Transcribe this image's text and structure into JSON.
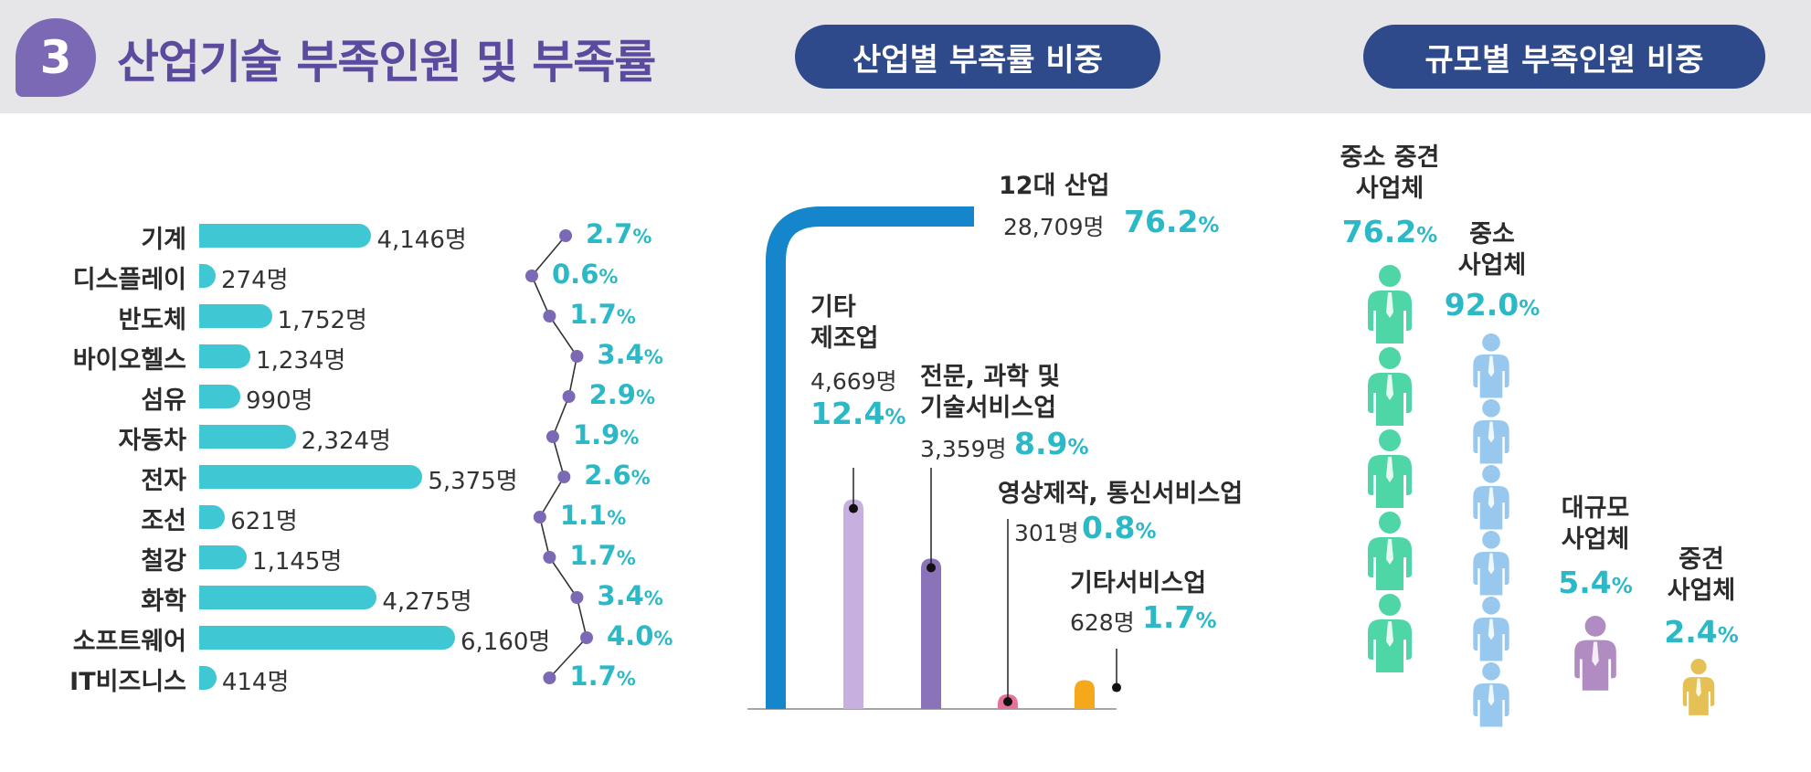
{
  "header": {
    "section_number": "3",
    "title": "산업기술 부족인원 및 부족률",
    "pill_industry": "산업별 부족률 비중",
    "pill_scale": "규모별 부족인원 비중"
  },
  "unit_person": "명",
  "unit_percent": "%",
  "colors": {
    "header_bg": "#e6e6e8",
    "title": "#5b4a9e",
    "pill": "#2f4a8a",
    "bar": "#3fc8d4",
    "percent_text": "#2cb9c7",
    "dot": "#7b69b5",
    "big_bar": "#1586cc",
    "other_mfg": "#c7afe0",
    "professional": "#8a73b8",
    "media": "#e8719a",
    "other_service": "#f5a81c",
    "sme_midsize": "#4fd6a6",
    "sme": "#98c8ee",
    "large": "#b08cc2",
    "midsize": "#e5c155"
  },
  "chart_data": [
    {
      "type": "bar",
      "orientation": "horizontal",
      "categories": [
        "기계",
        "디스플레이",
        "반도체",
        "바이오헬스",
        "섬유",
        "자동차",
        "전자",
        "조선",
        "철강",
        "화학",
        "소프트웨어",
        "IT비즈니스"
      ],
      "series": [
        {
          "values": [
            4146,
            274,
            1752,
            1234,
            990,
            2324,
            5375,
            621,
            1145,
            4275,
            6160,
            414
          ]
        }
      ],
      "value_labels": [
        "4,146명",
        "274명",
        "1,752명",
        "1,234명",
        "990명",
        "2,324명",
        "5,375명",
        "621명",
        "1,145명",
        "4,275명",
        "6,160명",
        "414명"
      ],
      "xlim": [
        0,
        6160
      ]
    },
    {
      "type": "line",
      "categories": [
        "기계",
        "디스플레이",
        "반도체",
        "바이오헬스",
        "섬유",
        "자동차",
        "전자",
        "조선",
        "철강",
        "화학",
        "소프트웨어",
        "IT비즈니스"
      ],
      "series": [
        {
          "values": [
            2.7,
            0.6,
            1.7,
            3.4,
            2.9,
            1.9,
            2.6,
            1.1,
            1.7,
            3.4,
            4.0,
            1.7
          ]
        }
      ],
      "value_labels": [
        "2.7",
        "0.6",
        "1.7",
        "3.4",
        "2.9",
        "1.9",
        "2.6",
        "1.1",
        "1.7",
        "3.4",
        "4.0",
        "1.7"
      ],
      "xlim": [
        0.6,
        4.0
      ]
    },
    {
      "type": "bar",
      "categories": [
        "12대 산업",
        "기타 제조업",
        "전문, 과학 및 기술서비스업",
        "영상제작, 통신서비스업",
        "기타서비스업"
      ],
      "name_lines": [
        [
          "12대 산업"
        ],
        [
          "기타",
          "제조업"
        ],
        [
          "전문, 과학 및",
          "기술서비스업"
        ],
        [
          "영상제작, 통신서비스업"
        ],
        [
          "기타서비스업"
        ]
      ],
      "counts": [
        28709,
        4669,
        3359,
        301,
        628
      ],
      "count_labels": [
        "28,709명",
        "4,669명",
        "3,359명",
        "301명",
        "628명"
      ],
      "values": [
        76.2,
        12.4,
        8.9,
        0.8,
        1.7
      ],
      "value_labels": [
        "76.2",
        "12.4",
        "8.9",
        "0.8",
        "1.7"
      ]
    },
    {
      "type": "bar",
      "categories": [
        "중소 중견 사업체",
        "중소 사업체",
        "대규모 사업체",
        "중견 사업체"
      ],
      "name_lines": [
        [
          "중소 중견",
          "사업체"
        ],
        [
          "중소",
          "사업체"
        ],
        [
          "대규모",
          "사업체"
        ],
        [
          "중견",
          "사업체"
        ]
      ],
      "values": [
        76.2,
        92.0,
        5.4,
        2.4
      ],
      "value_labels": [
        "76.2",
        "92.0",
        "5.4",
        "2.4"
      ],
      "icons": [
        "person-icon",
        "person-icon",
        "person-icon",
        "person-icon"
      ]
    }
  ]
}
